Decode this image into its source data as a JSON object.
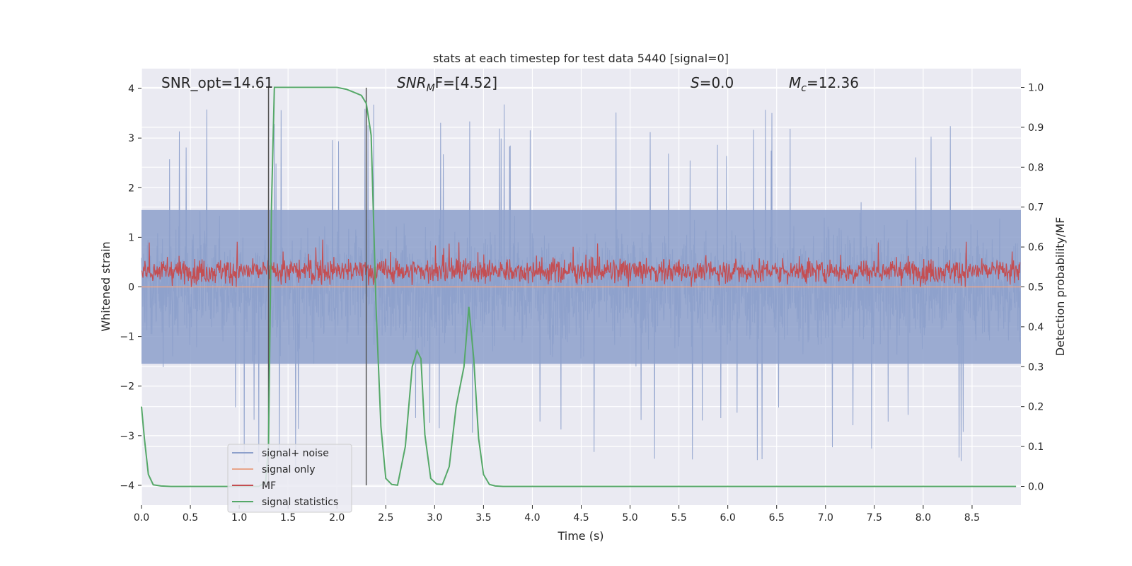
{
  "chart_data": {
    "type": "line",
    "title": "stats at each timestep for test data 5440 [signal=0]",
    "xlabel": "Time (s)",
    "ylabel_left": "Whitened strain",
    "ylabel_right": "Detection probability/MF",
    "xlim": [
      0,
      9.0
    ],
    "ylim_left": [
      -4.4,
      4.4
    ],
    "ylim_right": [
      -0.047,
      1.047
    ],
    "xticks": [
      0.0,
      0.5,
      1.0,
      1.5,
      2.0,
      2.5,
      3.0,
      3.5,
      4.0,
      4.5,
      5.0,
      5.5,
      6.0,
      6.5,
      7.0,
      7.5,
      8.0,
      8.5
    ],
    "xtick_labels": [
      "0.0",
      "0.5",
      "1.0",
      "1.5",
      "2.0",
      "2.5",
      "3.0",
      "3.5",
      "4.0",
      "4.5",
      "5.0",
      "5.5",
      "6.0",
      "6.5",
      "7.0",
      "7.5",
      "8.0",
      "8.5"
    ],
    "yticks_left": [
      4,
      3,
      2,
      1,
      0,
      -1,
      -2,
      -3,
      -4
    ],
    "ytick_labels_left": [
      "4",
      "3",
      "2",
      "1",
      "0",
      "−1",
      "−2",
      "−3",
      "−4"
    ],
    "yticks_right": [
      1.0,
      0.9,
      0.8,
      0.7,
      0.6,
      0.5,
      0.4,
      0.3,
      0.2,
      0.1,
      0.0
    ],
    "ytick_labels_right": [
      "1.0",
      "0.9",
      "0.8",
      "0.7",
      "0.6",
      "0.5",
      "0.4",
      "0.3",
      "0.2",
      "0.1",
      "0.0"
    ],
    "annotations": [
      {
        "id": "snr_opt",
        "text": "SNR_opt=14.61"
      },
      {
        "id": "snr_mf",
        "prefix": "SNR",
        "sub": "M",
        "suffix": "F=[4.52]"
      },
      {
        "id": "s",
        "prefix": "S",
        "suffix": "=0.0"
      },
      {
        "id": "mc",
        "prefix": "M",
        "sub": "c",
        "suffix": "=12.36"
      }
    ],
    "vertical_markers_x": [
      1.3,
      2.3
    ],
    "series": [
      {
        "name": "signal+ noise",
        "color": "#8da0cb",
        "description": "whitened strain noise, approx. -2..3 with spikes to about ±3.8"
      },
      {
        "name": "signal only",
        "color": "#e8a58a",
        "values": "flat at 0"
      },
      {
        "name": "MF",
        "color": "#c44e52",
        "description": "matched filter output, approx. 0.5 to 0.6 on right axis"
      },
      {
        "name": "signal statistics",
        "color": "#55a868",
        "x": [
          0.0,
          0.03,
          0.07,
          0.12,
          0.2,
          0.3,
          0.5,
          1.0,
          1.2,
          1.27,
          1.3,
          1.33,
          1.36,
          1.4,
          1.5,
          1.8,
          2.0,
          2.1,
          2.15,
          2.25,
          2.3,
          2.35,
          2.4,
          2.45,
          2.5,
          2.56,
          2.62,
          2.7,
          2.77,
          2.82,
          2.86,
          2.9,
          2.96,
          3.02,
          3.08,
          3.15,
          3.22,
          3.3,
          3.35,
          3.4,
          3.45,
          3.5,
          3.56,
          3.62,
          3.7,
          4.0,
          5.0,
          6.0,
          7.0,
          8.0,
          8.95
        ],
        "values": [
          0.2,
          0.12,
          0.03,
          0.004,
          0.001,
          0.0,
          0.0,
          0.0,
          0.0,
          0.01,
          0.1,
          0.7,
          1.0,
          1.0,
          1.0,
          1.0,
          1.0,
          0.995,
          0.99,
          0.98,
          0.96,
          0.88,
          0.45,
          0.15,
          0.02,
          0.005,
          0.003,
          0.1,
          0.3,
          0.34,
          0.32,
          0.13,
          0.02,
          0.006,
          0.005,
          0.05,
          0.2,
          0.3,
          0.45,
          0.32,
          0.12,
          0.03,
          0.005,
          0.001,
          0.0,
          0.0,
          0.0,
          0.0,
          0.0,
          0.0,
          0.0
        ]
      }
    ],
    "legend": {
      "position": "lower-left",
      "entries": [
        {
          "label": "signal+ noise",
          "color": "#8da0cb"
        },
        {
          "label": "signal only",
          "color": "#e8a58a"
        },
        {
          "label": "MF",
          "color": "#c44e52"
        },
        {
          "label": "signal statistics",
          "color": "#55a868"
        }
      ]
    },
    "style": {
      "plot_bg": "#eaeaf2",
      "grid_color": "#ffffff",
      "text_color": "#262626",
      "marker_color": "#555555"
    }
  }
}
